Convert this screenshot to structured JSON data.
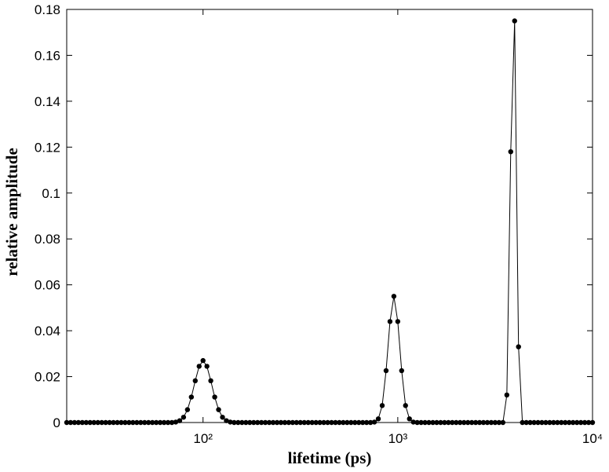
{
  "chart_data": {
    "type": "line",
    "xlabel": "lifetime (ps)",
    "ylabel": "relative amplitude",
    "log_x": true,
    "color": "#000000",
    "markers": true,
    "xlim": [
      19.95,
      10000
    ],
    "ylim": [
      0,
      0.18
    ],
    "xticks": [
      {
        "value": 100,
        "label": "10²"
      },
      {
        "value": 1000,
        "label": "10³"
      },
      {
        "value": 10000,
        "label": "10⁴"
      }
    ],
    "yticks": [
      0,
      0.02,
      0.04,
      0.06,
      0.08,
      0.1,
      0.12,
      0.14,
      0.16,
      0.18
    ],
    "x": [
      19.95,
      20.89,
      21.88,
      22.91,
      23.99,
      25.12,
      26.3,
      27.54,
      28.84,
      30.2,
      31.62,
      33.11,
      34.67,
      36.31,
      38.02,
      39.81,
      41.69,
      43.65,
      45.71,
      47.86,
      50.12,
      52.48,
      54.95,
      57.54,
      60.26,
      63.1,
      66.07,
      69.18,
      72.44,
      75.86,
      79.43,
      83.18,
      87.1,
      91.2,
      95.5,
      100,
      104.7,
      109.6,
      114.8,
      120.2,
      125.9,
      131.8,
      138,
      144.5,
      151.4,
      158.5,
      166,
      173.8,
      182,
      190.5,
      199.5,
      208.9,
      218.8,
      229.1,
      239.9,
      251.2,
      263,
      275.4,
      288.4,
      302,
      316.2,
      331.1,
      346.7,
      363.1,
      380.2,
      398.1,
      416.9,
      436.5,
      457.1,
      478.6,
      501.2,
      524.8,
      549.5,
      575.4,
      602.6,
      631,
      660.7,
      691.8,
      724.4,
      758.6,
      794.3,
      831.8,
      871,
      912,
      955,
      1000,
      1047,
      1096,
      1148,
      1202,
      1259,
      1318,
      1380,
      1445,
      1514,
      1585,
      1660,
      1738,
      1820,
      1905,
      1995,
      2089,
      2188,
      2291,
      2399,
      2512,
      2630,
      2754,
      2884,
      3020,
      3162,
      3311,
      3467,
      3631,
      3802,
      3981,
      4169,
      4365,
      4571,
      4786,
      5012,
      5248,
      5495,
      5754,
      6026,
      6310,
      6607,
      6918,
      7244,
      7586,
      7943,
      8318,
      8710,
      9120,
      9550,
      10000
    ],
    "values": [
      0,
      0,
      0,
      0,
      0,
      0,
      0,
      0,
      0,
      0,
      0,
      0,
      0,
      0,
      0,
      0,
      0,
      0,
      0,
      0,
      0,
      0,
      0,
      0,
      0,
      0,
      0,
      0,
      0.0002,
      0.0008,
      0.0023,
      0.0056,
      0.0111,
      0.0182,
      0.0245,
      0.027,
      0.0245,
      0.0182,
      0.0111,
      0.0056,
      0.0023,
      0.0008,
      0.0002,
      0,
      0,
      0,
      0,
      0,
      0,
      0,
      0,
      0,
      0,
      0,
      0,
      0,
      0,
      0,
      0,
      0,
      0,
      0,
      0,
      0,
      0,
      0,
      0,
      0,
      0,
      0,
      0,
      0,
      0,
      0,
      0,
      0,
      0,
      0,
      0,
      0.0002,
      0.0016,
      0.0074,
      0.0226,
      0.044,
      0.055,
      0.044,
      0.0226,
      0.0074,
      0.0016,
      0.0002,
      0,
      0,
      0,
      0,
      0,
      0,
      0,
      0,
      0,
      0,
      0,
      0,
      0,
      0,
      0,
      0,
      0,
      0,
      0,
      0,
      0,
      0,
      0,
      0.012,
      0.118,
      0.175,
      0.033,
      0,
      0,
      0,
      0,
      0,
      0,
      0,
      0,
      0,
      0,
      0,
      0,
      0,
      0,
      0,
      0,
      0,
      0,
      0
    ]
  }
}
